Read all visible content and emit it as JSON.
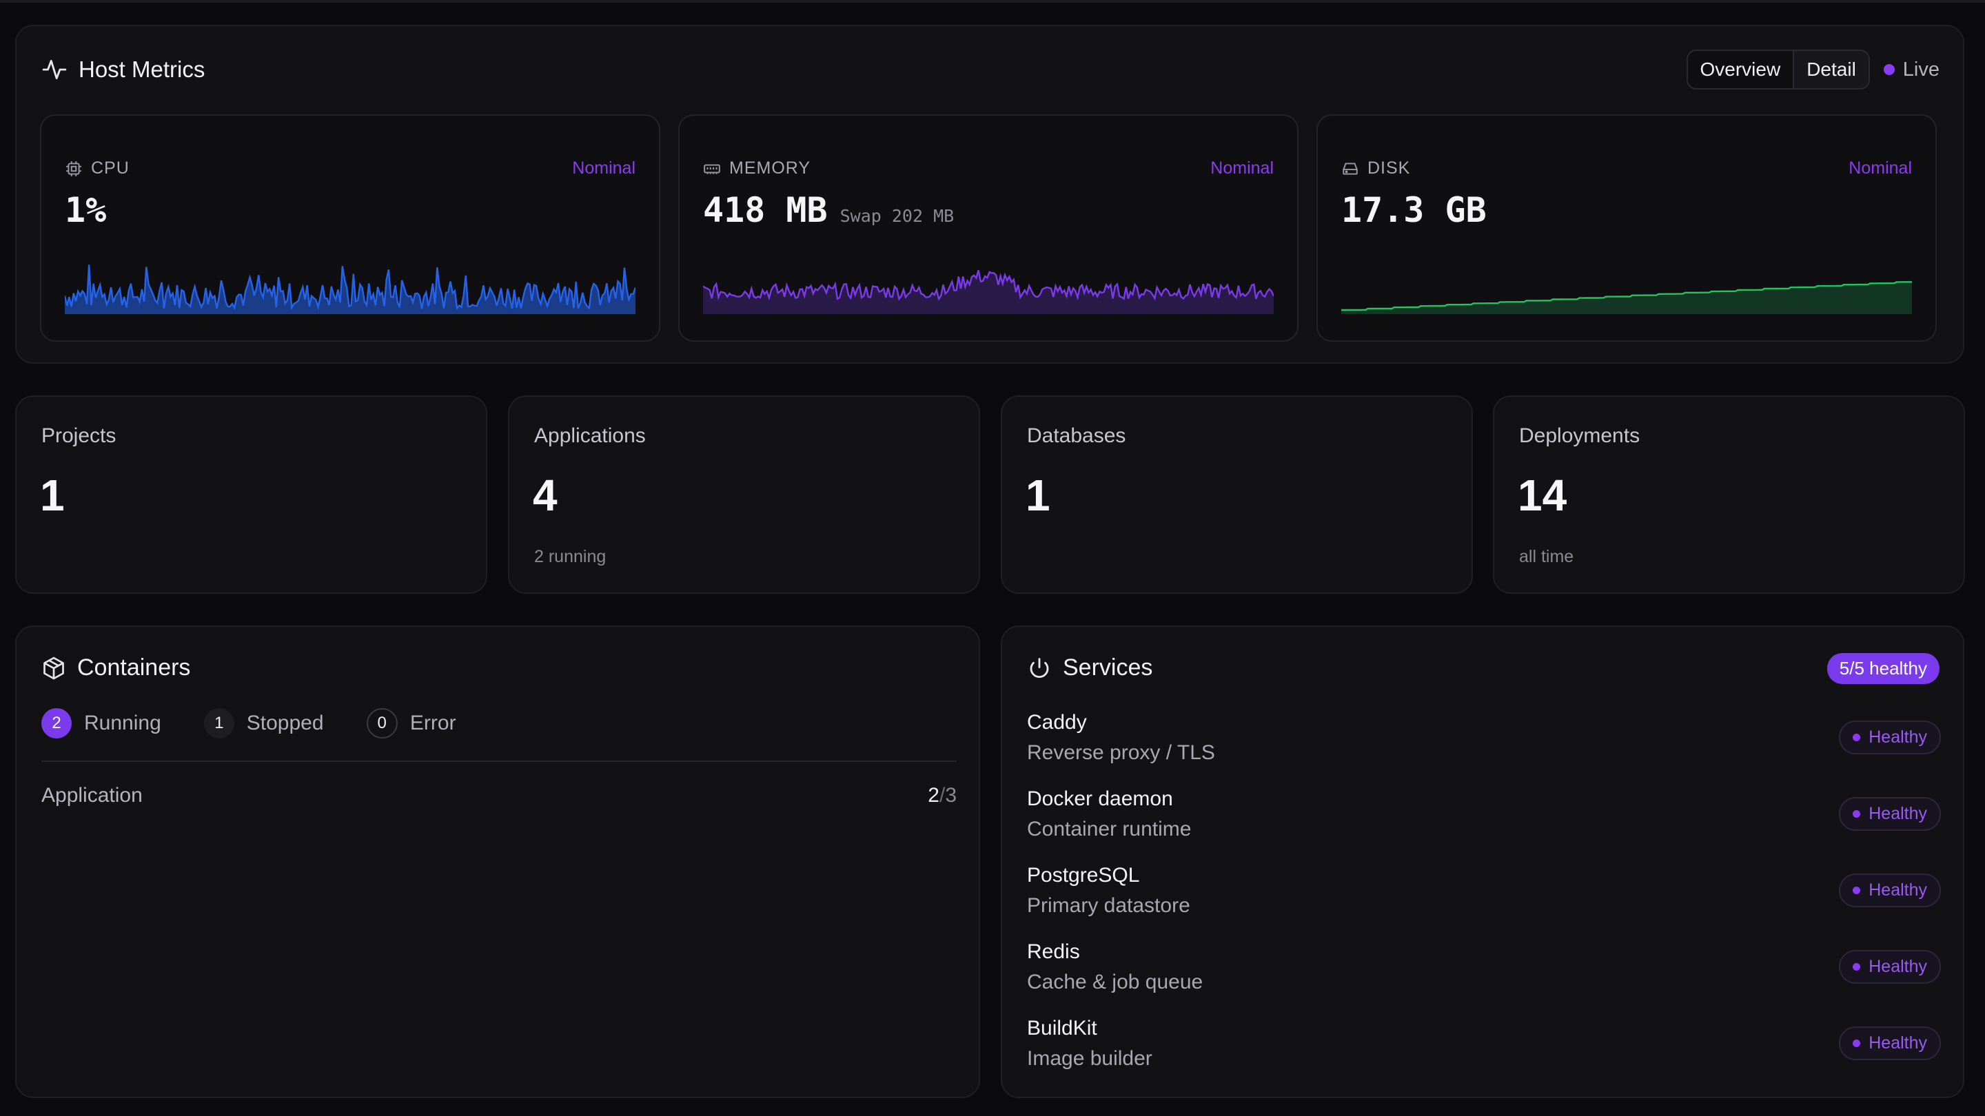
{
  "host_metrics": {
    "title": "Host Metrics",
    "tabs": [
      "Overview",
      "Detail"
    ],
    "live_label": "Live",
    "cards": [
      {
        "key": "cpu",
        "label": "CPU",
        "status": "Nominal",
        "value": "1%",
        "sub": "",
        "color": "#2563eb"
      },
      {
        "key": "memory",
        "label": "MEMORY",
        "status": "Nominal",
        "value": "418 MB",
        "sub": "Swap 202 MB",
        "color": "#7c3aed"
      },
      {
        "key": "disk",
        "label": "DISK",
        "status": "Nominal",
        "value": "17.3 GB",
        "sub": "",
        "color": "#22c55e"
      }
    ]
  },
  "stats": [
    {
      "label": "Projects",
      "value": "1",
      "sub": ""
    },
    {
      "label": "Applications",
      "value": "4",
      "sub": "2 running"
    },
    {
      "label": "Databases",
      "value": "1",
      "sub": ""
    },
    {
      "label": "Deployments",
      "value": "14",
      "sub": "all time"
    }
  ],
  "containers": {
    "title": "Containers",
    "running_count": "2",
    "running_label": "Running",
    "stopped_count": "1",
    "stopped_label": "Stopped",
    "error_count": "0",
    "error_label": "Error",
    "row_label": "Application",
    "row_running": "2",
    "row_sep": "/",
    "row_total": "3"
  },
  "services": {
    "title": "Services",
    "badge": "5/5 healthy",
    "items": [
      {
        "name": "Caddy",
        "desc": "Reverse proxy / TLS",
        "status": "Healthy"
      },
      {
        "name": "Docker daemon",
        "desc": "Container runtime",
        "status": "Healthy"
      },
      {
        "name": "PostgreSQL",
        "desc": "Primary datastore",
        "status": "Healthy"
      },
      {
        "name": "Redis",
        "desc": "Cache & job queue",
        "status": "Healthy"
      },
      {
        "name": "BuildKit",
        "desc": "Image builder",
        "status": "Healthy"
      }
    ]
  },
  "icons": {
    "host_metrics": "activity-icon",
    "cpu": "cpu-chip-icon",
    "memory": "memory-module-icon",
    "disk": "hard-drive-icon",
    "containers": "box-icon",
    "services": "power-icon"
  },
  "colors": {
    "accent": "#7c3aed",
    "cpu_line": "#2563eb",
    "memory_line": "#7c3aed",
    "disk_line": "#22c55e"
  }
}
